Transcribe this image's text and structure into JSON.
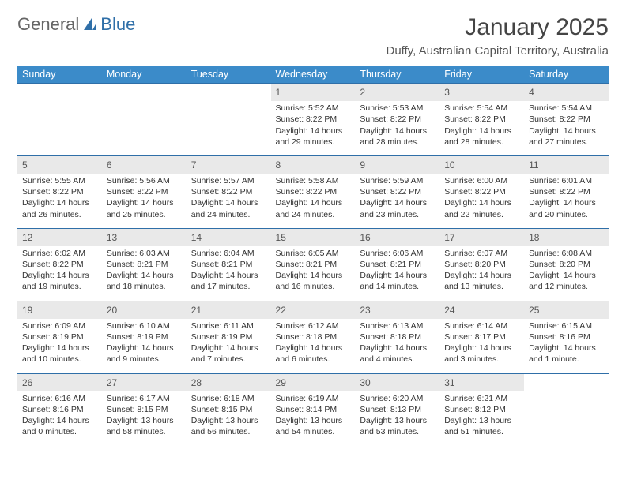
{
  "logo": {
    "text1": "General",
    "text2": "Blue"
  },
  "title": "January 2025",
  "location": "Duffy, Australian Capital Territory, Australia",
  "colors": {
    "header_bg": "#3b8bc9",
    "header_text": "#ffffff",
    "daynum_bg": "#e9e9e9",
    "row_border": "#2f6fa8",
    "body_text": "#333333",
    "logo_blue": "#2f6fa8"
  },
  "font": {
    "family": "Arial",
    "daynum_size": 12,
    "detail_size": 10.5,
    "title_size": 30,
    "header_size": 12.5
  },
  "day_headers": [
    "Sunday",
    "Monday",
    "Tuesday",
    "Wednesday",
    "Thursday",
    "Friday",
    "Saturday"
  ],
  "weeks": [
    [
      null,
      null,
      null,
      {
        "n": "1",
        "sr": "5:52 AM",
        "ss": "8:22 PM",
        "dl": "14 hours and 29 minutes."
      },
      {
        "n": "2",
        "sr": "5:53 AM",
        "ss": "8:22 PM",
        "dl": "14 hours and 28 minutes."
      },
      {
        "n": "3",
        "sr": "5:54 AM",
        "ss": "8:22 PM",
        "dl": "14 hours and 28 minutes."
      },
      {
        "n": "4",
        "sr": "5:54 AM",
        "ss": "8:22 PM",
        "dl": "14 hours and 27 minutes."
      }
    ],
    [
      {
        "n": "5",
        "sr": "5:55 AM",
        "ss": "8:22 PM",
        "dl": "14 hours and 26 minutes."
      },
      {
        "n": "6",
        "sr": "5:56 AM",
        "ss": "8:22 PM",
        "dl": "14 hours and 25 minutes."
      },
      {
        "n": "7",
        "sr": "5:57 AM",
        "ss": "8:22 PM",
        "dl": "14 hours and 24 minutes."
      },
      {
        "n": "8",
        "sr": "5:58 AM",
        "ss": "8:22 PM",
        "dl": "14 hours and 24 minutes."
      },
      {
        "n": "9",
        "sr": "5:59 AM",
        "ss": "8:22 PM",
        "dl": "14 hours and 23 minutes."
      },
      {
        "n": "10",
        "sr": "6:00 AM",
        "ss": "8:22 PM",
        "dl": "14 hours and 22 minutes."
      },
      {
        "n": "11",
        "sr": "6:01 AM",
        "ss": "8:22 PM",
        "dl": "14 hours and 20 minutes."
      }
    ],
    [
      {
        "n": "12",
        "sr": "6:02 AM",
        "ss": "8:22 PM",
        "dl": "14 hours and 19 minutes."
      },
      {
        "n": "13",
        "sr": "6:03 AM",
        "ss": "8:21 PM",
        "dl": "14 hours and 18 minutes."
      },
      {
        "n": "14",
        "sr": "6:04 AM",
        "ss": "8:21 PM",
        "dl": "14 hours and 17 minutes."
      },
      {
        "n": "15",
        "sr": "6:05 AM",
        "ss": "8:21 PM",
        "dl": "14 hours and 16 minutes."
      },
      {
        "n": "16",
        "sr": "6:06 AM",
        "ss": "8:21 PM",
        "dl": "14 hours and 14 minutes."
      },
      {
        "n": "17",
        "sr": "6:07 AM",
        "ss": "8:20 PM",
        "dl": "14 hours and 13 minutes."
      },
      {
        "n": "18",
        "sr": "6:08 AM",
        "ss": "8:20 PM",
        "dl": "14 hours and 12 minutes."
      }
    ],
    [
      {
        "n": "19",
        "sr": "6:09 AM",
        "ss": "8:19 PM",
        "dl": "14 hours and 10 minutes."
      },
      {
        "n": "20",
        "sr": "6:10 AM",
        "ss": "8:19 PM",
        "dl": "14 hours and 9 minutes."
      },
      {
        "n": "21",
        "sr": "6:11 AM",
        "ss": "8:19 PM",
        "dl": "14 hours and 7 minutes."
      },
      {
        "n": "22",
        "sr": "6:12 AM",
        "ss": "8:18 PM",
        "dl": "14 hours and 6 minutes."
      },
      {
        "n": "23",
        "sr": "6:13 AM",
        "ss": "8:18 PM",
        "dl": "14 hours and 4 minutes."
      },
      {
        "n": "24",
        "sr": "6:14 AM",
        "ss": "8:17 PM",
        "dl": "14 hours and 3 minutes."
      },
      {
        "n": "25",
        "sr": "6:15 AM",
        "ss": "8:16 PM",
        "dl": "14 hours and 1 minute."
      }
    ],
    [
      {
        "n": "26",
        "sr": "6:16 AM",
        "ss": "8:16 PM",
        "dl": "14 hours and 0 minutes."
      },
      {
        "n": "27",
        "sr": "6:17 AM",
        "ss": "8:15 PM",
        "dl": "13 hours and 58 minutes."
      },
      {
        "n": "28",
        "sr": "6:18 AM",
        "ss": "8:15 PM",
        "dl": "13 hours and 56 minutes."
      },
      {
        "n": "29",
        "sr": "6:19 AM",
        "ss": "8:14 PM",
        "dl": "13 hours and 54 minutes."
      },
      {
        "n": "30",
        "sr": "6:20 AM",
        "ss": "8:13 PM",
        "dl": "13 hours and 53 minutes."
      },
      {
        "n": "31",
        "sr": "6:21 AM",
        "ss": "8:12 PM",
        "dl": "13 hours and 51 minutes."
      },
      null
    ]
  ],
  "labels": {
    "sunrise": "Sunrise:",
    "sunset": "Sunset:",
    "daylight": "Daylight:"
  }
}
